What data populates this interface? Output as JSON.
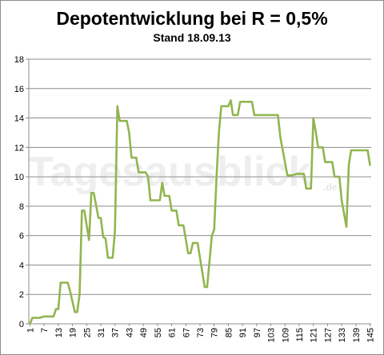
{
  "chart_data": {
    "type": "line",
    "title": "Depotentwicklung bei R = 0,5%",
    "subtitle": "Stand 18.09.13",
    "watermark": "Tagesausblick",
    "watermark_suffix": ".de",
    "ylim": [
      0,
      18
    ],
    "yticks": [
      0,
      2,
      4,
      6,
      8,
      10,
      12,
      14,
      16,
      18
    ],
    "xlim": [
      1,
      145
    ],
    "xticks": [
      1,
      7,
      13,
      19,
      25,
      31,
      37,
      43,
      49,
      55,
      61,
      67,
      73,
      79,
      85,
      91,
      97,
      103,
      109,
      115,
      121,
      127,
      133,
      139,
      145
    ],
    "grid": true,
    "line_color": "#92b550",
    "series": [
      {
        "points": [
          [
            1,
            0
          ],
          [
            2,
            0.4
          ],
          [
            5,
            0.4
          ],
          [
            7,
            0.5
          ],
          [
            11,
            0.5
          ],
          [
            12,
            1.0
          ],
          [
            13,
            1.0
          ],
          [
            14,
            2.8
          ],
          [
            17,
            2.8
          ],
          [
            18,
            2.2
          ],
          [
            20,
            0.8
          ],
          [
            21,
            0.8
          ],
          [
            22,
            2.0
          ],
          [
            23,
            7.7
          ],
          [
            24,
            7.7
          ],
          [
            26,
            5.7
          ],
          [
            27,
            8.9
          ],
          [
            28,
            8.9
          ],
          [
            30,
            7.2
          ],
          [
            31,
            7.2
          ],
          [
            32,
            5.9
          ],
          [
            33,
            5.8
          ],
          [
            34,
            4.5
          ],
          [
            36,
            4.5
          ],
          [
            37,
            6.3
          ],
          [
            38,
            14.8
          ],
          [
            39,
            13.8
          ],
          [
            42,
            13.8
          ],
          [
            43,
            13.0
          ],
          [
            44,
            11.3
          ],
          [
            46,
            11.3
          ],
          [
            47,
            10.3
          ],
          [
            50,
            10.3
          ],
          [
            51,
            10.0
          ],
          [
            52,
            8.4
          ],
          [
            56,
            8.4
          ],
          [
            57,
            9.6
          ],
          [
            58,
            8.7
          ],
          [
            60,
            8.7
          ],
          [
            61,
            7.7
          ],
          [
            63,
            7.7
          ],
          [
            64,
            6.7
          ],
          [
            66,
            6.7
          ],
          [
            68,
            4.8
          ],
          [
            69,
            4.8
          ],
          [
            70,
            5.5
          ],
          [
            72,
            5.5
          ],
          [
            75,
            2.5
          ],
          [
            76,
            2.5
          ],
          [
            78,
            6.0
          ],
          [
            79,
            6.4
          ],
          [
            80,
            10.0
          ],
          [
            81,
            13.0
          ],
          [
            82,
            14.8
          ],
          [
            85,
            14.8
          ],
          [
            86,
            15.2
          ],
          [
            87,
            14.2
          ],
          [
            89,
            14.2
          ],
          [
            90,
            15.1
          ],
          [
            95,
            15.1
          ],
          [
            96,
            14.2
          ],
          [
            106,
            14.2
          ],
          [
            107,
            12.7
          ],
          [
            110,
            10.1
          ],
          [
            112,
            10.1
          ],
          [
            114,
            10.2
          ],
          [
            117,
            10.2
          ],
          [
            118,
            9.2
          ],
          [
            120,
            9.2
          ],
          [
            121,
            14.0
          ],
          [
            122,
            13.1
          ],
          [
            123,
            12.0
          ],
          [
            125,
            12.0
          ],
          [
            126,
            11.0
          ],
          [
            129,
            11.0
          ],
          [
            130,
            10.0
          ],
          [
            132,
            10.0
          ],
          [
            133,
            8.4
          ],
          [
            135,
            6.6
          ],
          [
            136,
            10.8
          ],
          [
            137,
            11.8
          ],
          [
            144,
            11.8
          ],
          [
            145,
            10.8
          ]
        ]
      }
    ]
  }
}
